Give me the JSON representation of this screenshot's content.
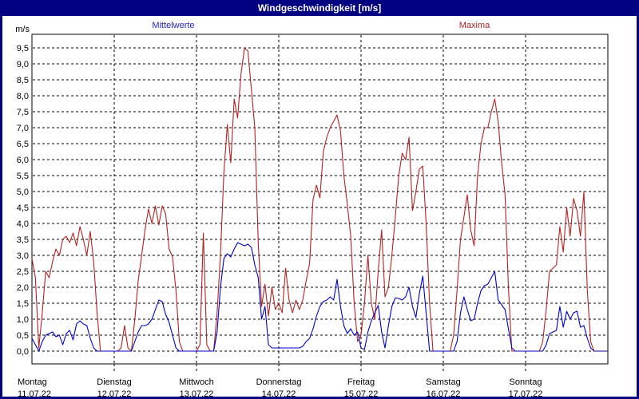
{
  "window": {
    "title": "Windgeschwindigkeit [m/s]",
    "title_bar_color": "#000080",
    "border_color": "#000080",
    "title_text_color": "#ffffff"
  },
  "legend": {
    "mean_label": "Mittelwerte",
    "max_label": "Maxima",
    "mean_color": "#2222cc",
    "max_color": "#b22222"
  },
  "chart_data": {
    "type": "line",
    "title": "Windgeschwindigkeit [m/s]",
    "ylabel": "m/s",
    "xlabel": "",
    "ylim": [
      0,
      9.5
    ],
    "ytick_step": 0.5,
    "ytick_labels": [
      "0,0",
      "0,5",
      "1,0",
      "1,5",
      "2,0",
      "2,5",
      "3,0",
      "3,5",
      "4,0",
      "4,5",
      "5,0",
      "5,5",
      "6,0",
      "6,5",
      "7,0",
      "7,5",
      "8,0",
      "8,5",
      "9,0",
      "9,5"
    ],
    "grid": "dashed",
    "legend_position": "top",
    "points_per_day": 24,
    "x_days": [
      {
        "name": "Montag",
        "date": "11.07.22"
      },
      {
        "name": "Dienstag",
        "date": "12.07.22"
      },
      {
        "name": "Mittwoch",
        "date": "13.07.22"
      },
      {
        "name": "Donnerstag",
        "date": "14.07.22"
      },
      {
        "name": "Freitag",
        "date": "15.07.22"
      },
      {
        "name": "Samstag",
        "date": "16.07.22"
      },
      {
        "name": "Sonntag",
        "date": "17.07.22"
      }
    ],
    "series": [
      {
        "name": "Maxima",
        "color": "#b22222",
        "unit": "m/s",
        "values": [
          2.9,
          2.3,
          0.1,
          1.2,
          2.5,
          2.3,
          2.8,
          3.2,
          3.0,
          3.5,
          3.6,
          3.4,
          3.7,
          3.3,
          3.9,
          3.5,
          3.0,
          3.75,
          2.8,
          1.2,
          0,
          0,
          0,
          0,
          0,
          0,
          0.1,
          0.8,
          0.1,
          0,
          1.0,
          2.2,
          3.0,
          3.8,
          4.45,
          4.0,
          4.55,
          3.95,
          4.55,
          4.3,
          3.2,
          2.95,
          1.9,
          0.3,
          0,
          0,
          0,
          0,
          0,
          0.2,
          3.7,
          0.2,
          0,
          0,
          1.2,
          3.0,
          5.6,
          7.1,
          5.9,
          7.9,
          7.3,
          8.7,
          9.5,
          9.4,
          8.2,
          7.0,
          3.4,
          1.4,
          2.1,
          1.1,
          2.0,
          1.3,
          1.5,
          1.2,
          2.6,
          1.6,
          1.2,
          1.6,
          1.3,
          1.6,
          2.2,
          2.75,
          4.75,
          5.2,
          4.8,
          6.25,
          6.7,
          7.0,
          7.2,
          7.4,
          6.9,
          5.5,
          4.6,
          3.6,
          1.5,
          0.3,
          0.5,
          1.5,
          3.0,
          1.5,
          1.0,
          2.5,
          3.8,
          1.7,
          2.0,
          3.0,
          4.2,
          5.5,
          6.2,
          6.0,
          6.7,
          4.4,
          5.0,
          5.7,
          5.8,
          4.0,
          1.5,
          0,
          0,
          0,
          0,
          0,
          0,
          0.5,
          1.9,
          3.5,
          4.2,
          4.9,
          3.8,
          3.3,
          5.5,
          6.5,
          7.0,
          7.0,
          7.5,
          7.9,
          7.2,
          5.9,
          4.9,
          2.0,
          0,
          0,
          0,
          0,
          0,
          0,
          0,
          0,
          0,
          0.3,
          1.3,
          2.5,
          2.6,
          2.7,
          3.9,
          3.1,
          4.5,
          3.6,
          4.78,
          4.4,
          3.6,
          5.0,
          1.9,
          0.3,
          0,
          0,
          0,
          0
        ]
      },
      {
        "name": "Mittelwerte",
        "color": "#0000cc",
        "unit": "m/s",
        "values": [
          0.4,
          0.2,
          0,
          0.3,
          0.5,
          0.55,
          0.6,
          0.45,
          0.5,
          0.2,
          0.55,
          0.65,
          0.35,
          0.85,
          0.95,
          0.85,
          0.8,
          0.4,
          0.1,
          0,
          0,
          0,
          0,
          0,
          0,
          0,
          0,
          0,
          0,
          0,
          0.3,
          0.6,
          0.8,
          0.8,
          0.85,
          1.0,
          1.3,
          1.6,
          1.55,
          1.15,
          0.9,
          0.5,
          0.1,
          0,
          0,
          0,
          0,
          0,
          0,
          0,
          0,
          0,
          0,
          0,
          0.6,
          2.0,
          2.9,
          3.05,
          2.95,
          3.2,
          3.4,
          3.35,
          3.3,
          3.35,
          3.25,
          2.7,
          2.3,
          1.0,
          1.4,
          0.2,
          0.1,
          0.1,
          0.1,
          0.1,
          0.1,
          0.1,
          0.1,
          0.1,
          0.1,
          0.15,
          0.3,
          0.4,
          0.7,
          1.1,
          1.4,
          1.55,
          1.6,
          1.7,
          1.6,
          2.25,
          1.4,
          0.8,
          0.55,
          0.7,
          0.5,
          0.6,
          0.1,
          0.05,
          0.6,
          0.95,
          1.2,
          1.43,
          0.6,
          0.1,
          0.8,
          1.4,
          1.67,
          1.65,
          1.6,
          1.7,
          2.0,
          1.4,
          1.05,
          1.8,
          2.35,
          1.2,
          0,
          0,
          0,
          0,
          0,
          0,
          0,
          0,
          0.3,
          1.2,
          1.7,
          1.3,
          0.95,
          1.0,
          1.5,
          1.9,
          2.05,
          2.1,
          2.3,
          2.5,
          1.6,
          1.45,
          1.3,
          0.7,
          0.1,
          0,
          0,
          0,
          0,
          0,
          0,
          0,
          0,
          0,
          0.2,
          0.55,
          0.6,
          0.65,
          1.4,
          0.75,
          1.25,
          1.0,
          1.2,
          1.25,
          0.75,
          0.8,
          0.4,
          0.1,
          0,
          0,
          0,
          0
        ]
      }
    ]
  }
}
